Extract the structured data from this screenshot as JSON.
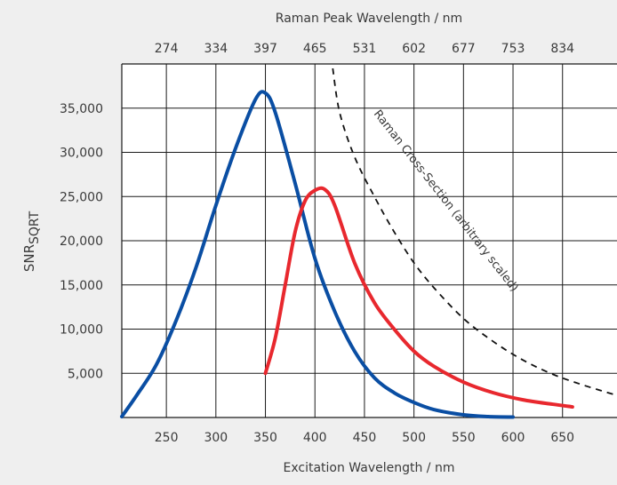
{
  "chart_data": {
    "type": "line",
    "x_axis": {
      "label": "Excitation Wavelength / nm",
      "ticks": [
        250,
        300,
        350,
        400,
        450,
        500,
        550,
        600,
        650
      ],
      "range": [
        205,
        705
      ]
    },
    "top_axis": {
      "label": "Raman Peak Wavelength / nm",
      "ticks": [
        "274",
        "334",
        "397",
        "465",
        "531",
        "602",
        "677",
        "753",
        "834"
      ],
      "positions": [
        250,
        300,
        350,
        400,
        450,
        500,
        550,
        600,
        650
      ]
    },
    "y_axis": {
      "label_main": "SNR",
      "label_sub": "SQRT",
      "ticks": [
        5000,
        10000,
        15000,
        20000,
        25000,
        30000,
        35000
      ],
      "tick_labels": [
        "5,000",
        "10,000",
        "15,000",
        "20,000",
        "25,000",
        "30,000",
        "35,000"
      ],
      "range": [
        0,
        40000
      ]
    },
    "grid": true,
    "series": [
      {
        "color": "#0a4ea3",
        "style": "solid",
        "x": [
          205,
          220,
          240,
          260,
          280,
          300,
          320,
          340,
          350,
          360,
          380,
          400,
          420,
          440,
          460,
          480,
          500,
          520,
          550,
          575,
          600
        ],
        "y": [
          100,
          2500,
          6000,
          11000,
          17000,
          24000,
          30500,
          36000,
          36700,
          34500,
          26500,
          18000,
          12000,
          7500,
          4500,
          2800,
          1700,
          900,
          300,
          100,
          50
        ]
      },
      {
        "color": "#e8282e",
        "style": "solid",
        "x": [
          350,
          360,
          370,
          380,
          390,
          400,
          410,
          420,
          440,
          460,
          480,
          500,
          520,
          550,
          580,
          610,
          640,
          660
        ],
        "y": [
          5000,
          9000,
          15000,
          21000,
          24500,
          25700,
          25800,
          24000,
          17500,
          13000,
          10000,
          7500,
          5800,
          4000,
          2800,
          2000,
          1500,
          1200
        ]
      },
      {
        "name": "Raman Cross-Section (arbitrary scaled)",
        "color": "#111111",
        "style": "dashed",
        "x": [
          418,
          425,
          440,
          460,
          480,
          500,
          520,
          550,
          580,
          610,
          640,
          670,
          705
        ],
        "y": [
          39500,
          34500,
          29500,
          25000,
          21000,
          17500,
          14700,
          11200,
          8600,
          6500,
          4900,
          3700,
          2500
        ]
      }
    ],
    "annotation": "Raman Cross-Section (arbitrary scaled)"
  }
}
